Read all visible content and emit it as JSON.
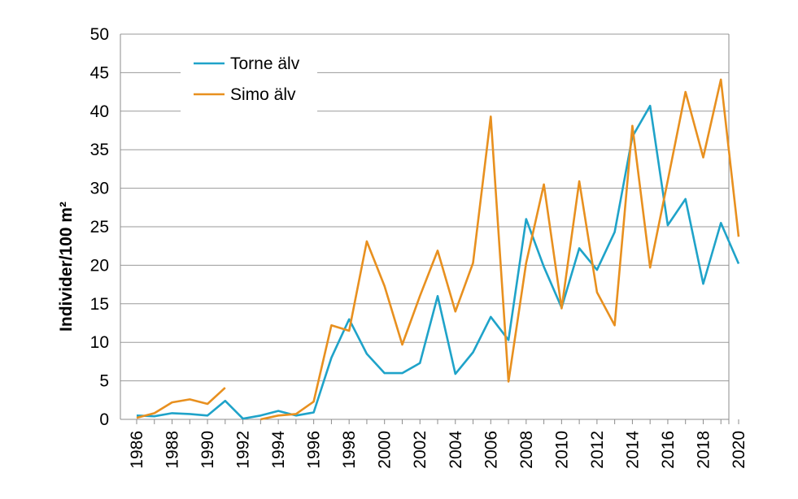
{
  "chart_data": {
    "type": "line",
    "ylabel": "Individer/100 m²",
    "xlabel": "",
    "ylim": [
      0,
      50
    ],
    "xlim": [
      1986,
      2020
    ],
    "yticks": [
      0,
      5,
      10,
      15,
      20,
      25,
      30,
      35,
      40,
      45,
      50
    ],
    "xticks": [
      1986,
      1988,
      1990,
      1992,
      1994,
      1996,
      1998,
      2000,
      2002,
      2004,
      2006,
      2008,
      2010,
      2012,
      2014,
      2016,
      2018,
      2020
    ],
    "grid": "horizontal",
    "legend": "top-left",
    "series": [
      {
        "name": "Torne älv",
        "color": "#1fa3c9",
        "x": [
          1986,
          1987,
          1988,
          1989,
          1990,
          1991,
          1992,
          1993,
          1994,
          1995,
          1996,
          1997,
          1998,
          1999,
          2000,
          2001,
          2002,
          2003,
          2004,
          2005,
          2006,
          2007,
          2008,
          2009,
          2010,
          2011,
          2012,
          2013,
          2014,
          2015,
          2016,
          2017,
          2018,
          2019,
          2020
        ],
        "values": [
          0.5,
          0.4,
          0.8,
          0.7,
          0.5,
          2.4,
          0.1,
          0.5,
          1.1,
          0.5,
          0.9,
          8.0,
          13.0,
          8.5,
          6.0,
          6.0,
          7.3,
          16.0,
          5.9,
          8.7,
          13.3,
          10.3,
          26.0,
          19.8,
          14.5,
          22.2,
          19.4,
          24.3,
          36.7,
          40.7,
          25.2,
          28.6,
          17.6,
          25.5,
          20.2
        ]
      },
      {
        "name": "Simo älv",
        "color": "#e8901f",
        "x": [
          1986,
          1987,
          1988,
          1989,
          1990,
          1991,
          null,
          1993,
          1994,
          1995,
          1996,
          1997,
          1998,
          1999,
          2000,
          2001,
          2002,
          2003,
          2004,
          2005,
          2006,
          2007,
          2008,
          2009,
          2010,
          2011,
          2012,
          2013,
          2014,
          2015,
          2016,
          2017,
          2018,
          2019,
          2020
        ],
        "values": [
          0.2,
          0.8,
          2.2,
          2.6,
          2.0,
          4.1,
          null,
          0.0,
          0.5,
          0.7,
          2.3,
          12.2,
          11.5,
          23.1,
          17.3,
          9.7,
          16.0,
          21.9,
          14.0,
          20.3,
          39.3,
          4.9,
          20.3,
          30.5,
          14.4,
          30.9,
          16.5,
          12.2,
          38.1,
          19.7,
          31.0,
          42.5,
          34.0,
          44.1,
          23.7
        ]
      }
    ]
  }
}
